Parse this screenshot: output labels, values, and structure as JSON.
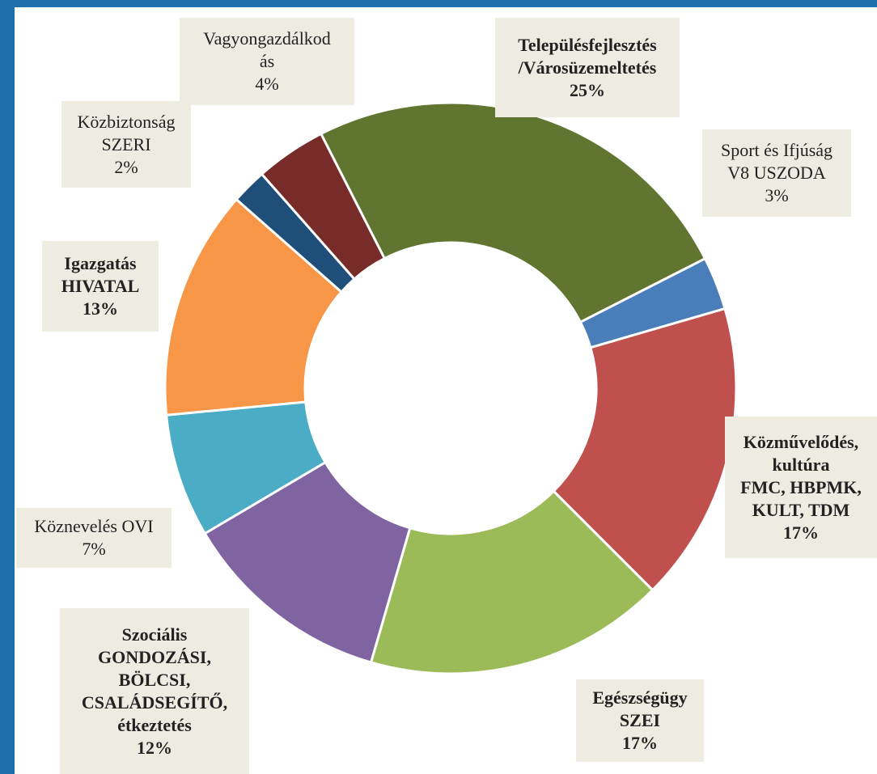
{
  "chart_data": {
    "type": "donut",
    "categories": [
      "Településfejlesztés\n/Városüzemeltetés",
      "Sport és Ifjúság\nV8 USZODA",
      "Közművelődés,\nkultúra\nFMC, HBPMK,\nKULT, TDM",
      "Egészségügy\nSZEI",
      "Szociális\nGONDOZÁSI,\nBÖLCSI,\nCSALÁDSEGÍTŐ,\nétkeztetés",
      "Köznevelés OVI",
      "Igazgatás\nHIVATAL",
      "Közbiztonság\nSZERI",
      "Vagyongazdálkod\nás"
    ],
    "values": [
      25,
      3,
      17,
      17,
      12,
      7,
      13,
      2,
      4
    ],
    "value_labels": [
      "25%",
      "3%",
      "17%",
      "17%",
      "12%",
      "7%",
      "13%",
      "2%",
      "4%"
    ],
    "colors": [
      "#5f7530",
      "#4a7ebb",
      "#c0504d",
      "#9bbb59",
      "#8064a2",
      "#4bacc6",
      "#f79646",
      "#1f4e79",
      "#772c2a"
    ],
    "bold": [
      true,
      false,
      true,
      true,
      true,
      false,
      true,
      false,
      false
    ]
  }
}
